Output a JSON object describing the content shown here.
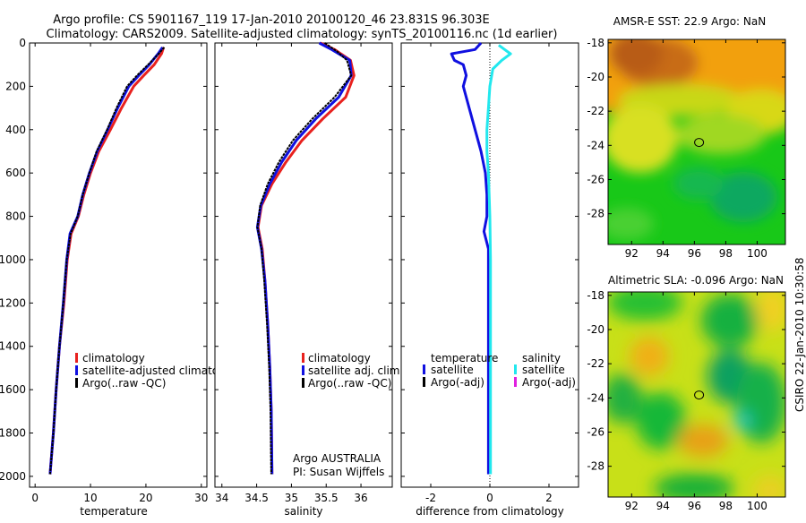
{
  "header": {
    "line1": "Argo profile: CS 5901167_119 17-Jan-2010 20100120_46 23.831S 96.303E",
    "line2": "Climatology: CARS2009. Satellite-adjusted climatology: synTS_20100116.nc (1d earlier)"
  },
  "colors": {
    "climatology": "#e8211e",
    "satellite": "#1010e0",
    "argo": "#000000",
    "sal_sat": "#22e8ee",
    "sal_argo": "#e020e0"
  },
  "chart_data": [
    {
      "type": "line",
      "name": "temperature",
      "xlabel": "temperature",
      "xlim": [
        -1,
        31
      ],
      "xticks": [
        "0",
        "10",
        "20",
        "30"
      ],
      "ylim": [
        2050,
        0
      ],
      "yticks": [
        "0",
        "200",
        "400",
        "600",
        "800",
        "1000",
        "1200",
        "1400",
        "1600",
        "1800",
        "2000"
      ],
      "legend": [
        "climatology",
        "satellite-adjusted climatology",
        "Argo(..raw -QC)"
      ],
      "series": [
        {
          "name": "climatology",
          "color": "#e8211e",
          "points": [
            [
              23.2,
              20
            ],
            [
              22.8,
              50
            ],
            [
              21.5,
              100
            ],
            [
              19.6,
              150
            ],
            [
              17.8,
              200
            ],
            [
              15.6,
              300
            ],
            [
              13.6,
              400
            ],
            [
              11.5,
              500
            ],
            [
              10.0,
              600
            ],
            [
              8.8,
              700
            ],
            [
              7.8,
              800
            ],
            [
              6.5,
              880
            ],
            [
              5.8,
              1000
            ],
            [
              5.2,
              1200
            ],
            [
              4.4,
              1400
            ],
            [
              3.8,
              1600
            ],
            [
              3.3,
              1800
            ],
            [
              2.7,
              1990
            ]
          ]
        },
        {
          "name": "satellite",
          "color": "#1010e0",
          "points": [
            [
              23.0,
              20
            ],
            [
              22.2,
              50
            ],
            [
              20.6,
              100
            ],
            [
              18.7,
              150
            ],
            [
              16.9,
              200
            ],
            [
              14.9,
              300
            ],
            [
              13.1,
              400
            ],
            [
              11.2,
              500
            ],
            [
              9.8,
              600
            ],
            [
              8.6,
              700
            ],
            [
              7.7,
              800
            ],
            [
              6.3,
              880
            ],
            [
              5.7,
              1000
            ],
            [
              5.1,
              1200
            ],
            [
              4.4,
              1400
            ],
            [
              3.8,
              1600
            ],
            [
              3.3,
              1800
            ],
            [
              2.7,
              1990
            ]
          ]
        },
        {
          "name": "argo",
          "color": "#000000",
          "dashed": true,
          "points": [
            [
              23.3,
              20
            ],
            [
              22.3,
              50
            ],
            [
              20.4,
              100
            ],
            [
              18.4,
              150
            ],
            [
              16.6,
              200
            ],
            [
              14.7,
              300
            ],
            [
              13.0,
              400
            ],
            [
              11.1,
              500
            ],
            [
              9.8,
              600
            ],
            [
              8.6,
              700
            ],
            [
              7.7,
              800
            ],
            [
              6.4,
              880
            ],
            [
              5.7,
              1000
            ],
            [
              5.1,
              1200
            ],
            [
              4.4,
              1400
            ],
            [
              3.8,
              1600
            ],
            [
              3.3,
              1800
            ],
            [
              2.7,
              1990
            ]
          ]
        }
      ]
    },
    {
      "type": "line",
      "name": "salinity",
      "xlabel": "salinity",
      "xlim": [
        33.9,
        36.45
      ],
      "xticks": [
        "34",
        "34.5",
        "35",
        "35.5",
        "36"
      ],
      "ylim": [
        2050,
        0
      ],
      "legend": [
        "climatology",
        "satellite adj. clim.",
        "Argo(..raw -QC)"
      ],
      "annotation": [
        "Argo AUSTRALIA",
        "PI: Susan Wijffels"
      ],
      "series": [
        {
          "name": "climatology",
          "color": "#e8211e",
          "points": [
            [
              35.42,
              0
            ],
            [
              35.62,
              30
            ],
            [
              35.85,
              80
            ],
            [
              35.9,
              150
            ],
            [
              35.78,
              250
            ],
            [
              35.45,
              350
            ],
            [
              35.15,
              450
            ],
            [
              34.92,
              550
            ],
            [
              34.72,
              650
            ],
            [
              34.57,
              750
            ],
            [
              34.52,
              850
            ],
            [
              34.58,
              950
            ],
            [
              34.62,
              1100
            ],
            [
              34.66,
              1300
            ],
            [
              34.69,
              1500
            ],
            [
              34.71,
              1700
            ],
            [
              34.72,
              1990
            ]
          ]
        },
        {
          "name": "satellite",
          "color": "#1010e0",
          "points": [
            [
              35.4,
              0
            ],
            [
              35.58,
              30
            ],
            [
              35.84,
              80
            ],
            [
              35.86,
              150
            ],
            [
              35.68,
              250
            ],
            [
              35.35,
              350
            ],
            [
              35.07,
              450
            ],
            [
              34.86,
              550
            ],
            [
              34.69,
              650
            ],
            [
              34.56,
              750
            ],
            [
              34.51,
              850
            ],
            [
              34.57,
              950
            ],
            [
              34.62,
              1100
            ],
            [
              34.66,
              1300
            ],
            [
              34.69,
              1500
            ],
            [
              34.71,
              1700
            ],
            [
              34.72,
              1990
            ]
          ]
        },
        {
          "name": "argo",
          "color": "#000000",
          "dashed": true,
          "points": [
            [
              35.48,
              0
            ],
            [
              35.66,
              40
            ],
            [
              35.8,
              80
            ],
            [
              35.86,
              150
            ],
            [
              35.62,
              250
            ],
            [
              35.3,
              350
            ],
            [
              35.02,
              450
            ],
            [
              34.82,
              550
            ],
            [
              34.66,
              650
            ],
            [
              34.55,
              750
            ],
            [
              34.51,
              850
            ],
            [
              34.57,
              950
            ],
            [
              34.61,
              1100
            ],
            [
              34.65,
              1300
            ],
            [
              34.68,
              1500
            ],
            [
              34.7,
              1700
            ],
            [
              34.71,
              1990
            ]
          ]
        }
      ]
    },
    {
      "type": "line",
      "name": "difference",
      "xlabel": "difference from climatology",
      "xlim": [
        -3,
        3
      ],
      "xticks": [
        "-2",
        "0",
        "2"
      ],
      "ylim": [
        2050,
        0
      ],
      "legend_left": {
        "title": "temperature",
        "items": [
          "satellite",
          "Argo(-adj)"
        ]
      },
      "legend_right": {
        "title": "salinity",
        "items": [
          "satellite",
          "Argo(-adj)"
        ]
      },
      "series": [
        {
          "name": "temperature satellite",
          "color": "#1010e0",
          "points": [
            [
              -0.3,
              0
            ],
            [
              -0.5,
              30
            ],
            [
              -1.3,
              50
            ],
            [
              -1.2,
              80
            ],
            [
              -0.9,
              100
            ],
            [
              -0.8,
              150
            ],
            [
              -0.9,
              200
            ],
            [
              -0.7,
              300
            ],
            [
              -0.5,
              400
            ],
            [
              -0.3,
              500
            ],
            [
              -0.15,
              600
            ],
            [
              -0.1,
              700
            ],
            [
              -0.1,
              800
            ],
            [
              -0.2,
              870
            ],
            [
              -0.05,
              950
            ],
            [
              -0.05,
              1200
            ],
            [
              -0.05,
              1600
            ],
            [
              -0.05,
              1990
            ]
          ]
        },
        {
          "name": "salinity satellite",
          "color": "#22e8ee",
          "points": [
            [
              0.3,
              10
            ],
            [
              0.5,
              30
            ],
            [
              0.7,
              50
            ],
            [
              0.4,
              80
            ],
            [
              0.1,
              120
            ],
            [
              0.0,
              200
            ],
            [
              -0.05,
              300
            ],
            [
              -0.1,
              400
            ],
            [
              -0.1,
              500
            ],
            [
              -0.05,
              600
            ],
            [
              0.0,
              800
            ],
            [
              0.02,
              1000
            ],
            [
              0.02,
              1400
            ],
            [
              0.02,
              1800
            ],
            [
              0.02,
              1990
            ]
          ]
        }
      ]
    },
    {
      "type": "heatmap",
      "name": "sst-map",
      "title": "AMSR-E SST: 22.9 Argo: NaN",
      "xlim": [
        90.5,
        101.8
      ],
      "ylim": [
        -29.8,
        -17.8
      ],
      "xticks": [
        "92",
        "94",
        "96",
        "98",
        "100"
      ],
      "yticks": [
        "-18",
        "-20",
        "-22",
        "-24",
        "-26",
        "-28"
      ],
      "marker": {
        "lon": 96.3,
        "lat": -23.83
      }
    },
    {
      "type": "heatmap",
      "name": "sla-map",
      "title": "Altimetric SLA: -0.096 Argo: NaN",
      "xlim": [
        90.5,
        101.8
      ],
      "ylim": [
        -29.8,
        -17.8
      ],
      "xticks": [
        "92",
        "94",
        "96",
        "98",
        "100"
      ],
      "yticks": [
        "-18",
        "-20",
        "-22",
        "-24",
        "-26",
        "-28"
      ],
      "marker": {
        "lon": 96.3,
        "lat": -23.83
      }
    }
  ],
  "stamp": "CSIRO 22-Jan-2010 10:30:58"
}
